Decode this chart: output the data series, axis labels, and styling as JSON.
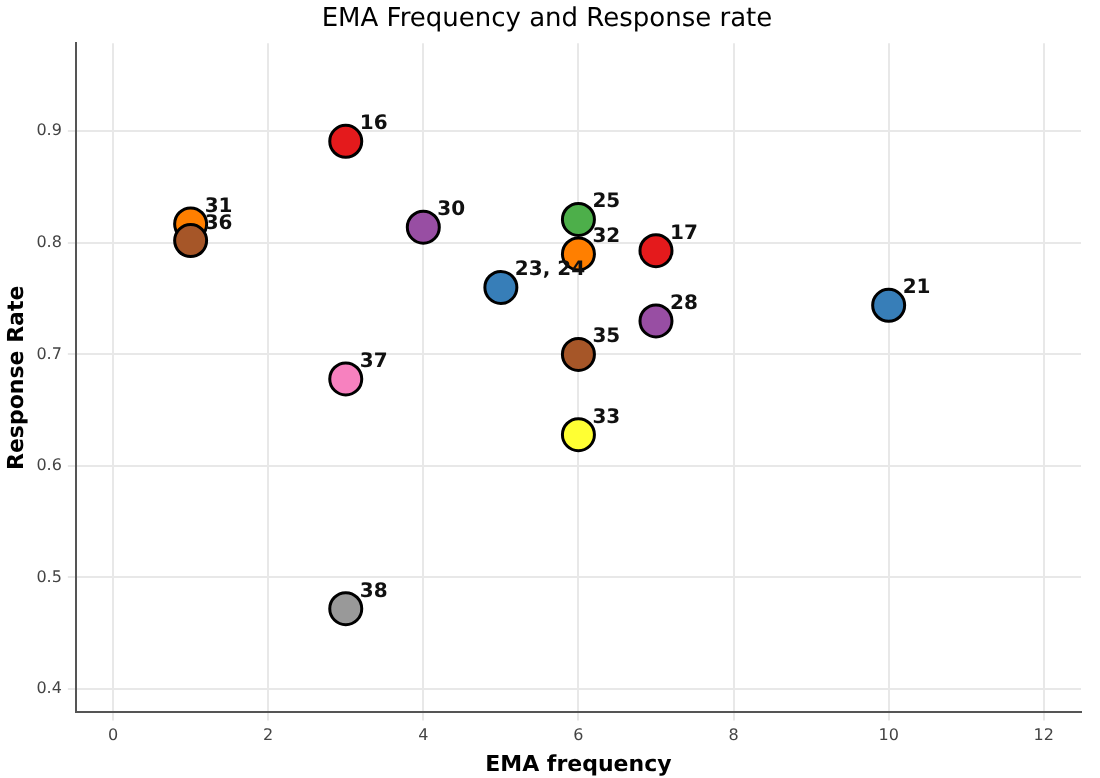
{
  "chart_data": {
    "type": "scatter",
    "title": "EMA Frequency and Response rate",
    "xlabel": "EMA frequency",
    "ylabel": "Response Rate",
    "x": [
      3,
      1,
      1,
      4,
      6,
      6,
      7,
      5,
      10,
      7,
      6,
      3,
      6,
      3
    ],
    "values": [
      0.891,
      0.817,
      0.802,
      0.814,
      0.821,
      0.79,
      0.793,
      0.76,
      0.744,
      0.73,
      0.7,
      0.678,
      0.628,
      0.472
    ],
    "colors": [
      "#e41a1c",
      "#ff7f00",
      "#a65628",
      "#984ea3",
      "#4daf4a",
      "#ff7f00",
      "#e41a1c",
      "#377eb8",
      "#377eb8",
      "#984ea3",
      "#a65628",
      "#f781bf",
      "#ffff33",
      "#999999"
    ],
    "annotations": [
      {
        "text": "16",
        "x": 3,
        "y": 0.891
      },
      {
        "text": "31",
        "x": 1,
        "y": 0.817
      },
      {
        "text": "36",
        "x": 1,
        "y": 0.802
      },
      {
        "text": "30",
        "x": 4,
        "y": 0.814
      },
      {
        "text": "25",
        "x": 6,
        "y": 0.821
      },
      {
        "text": "32",
        "x": 6,
        "y": 0.79
      },
      {
        "text": "17",
        "x": 7,
        "y": 0.793
      },
      {
        "text": "23, 24",
        "x": 5,
        "y": 0.76
      },
      {
        "text": "21",
        "x": 10,
        "y": 0.744
      },
      {
        "text": "28",
        "x": 7,
        "y": 0.73
      },
      {
        "text": "35",
        "x": 6,
        "y": 0.7
      },
      {
        "text": "37",
        "x": 3,
        "y": 0.678
      },
      {
        "text": "33",
        "x": 6,
        "y": 0.628
      },
      {
        "text": "38",
        "x": 3,
        "y": 0.472
      }
    ],
    "xlim": [
      -0.48,
      12.48
    ],
    "xticks": [
      0,
      2,
      4,
      6,
      8,
      10,
      12
    ],
    "ylim": [
      0.379,
      0.979
    ],
    "yticks": [
      0.4,
      0.5,
      0.6,
      0.7,
      0.8,
      0.9
    ],
    "grid": true,
    "marker": "circle"
  }
}
